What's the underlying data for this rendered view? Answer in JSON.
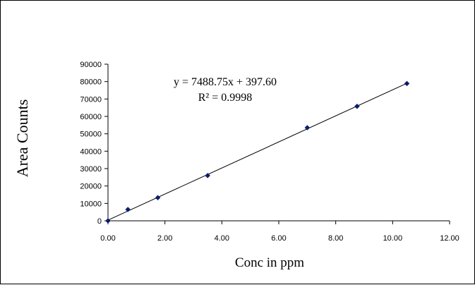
{
  "chart_data": {
    "type": "scatter",
    "xlabel": "Conc in ppm",
    "ylabel": "Area Counts",
    "xlim": [
      0,
      12
    ],
    "ylim": [
      0,
      90000
    ],
    "x_ticks": [
      "0.00",
      "2.00",
      "4.00",
      "6.00",
      "8.00",
      "10.00",
      "12.00"
    ],
    "y_ticks": [
      "0",
      "10000",
      "20000",
      "30000",
      "40000",
      "50000",
      "60000",
      "70000",
      "80000",
      "90000"
    ],
    "series": [
      {
        "marker_color": "#0B1C6E",
        "points": [
          {
            "x": 0.0,
            "y": 0
          },
          {
            "x": 0.7,
            "y": 6500
          },
          {
            "x": 1.75,
            "y": 13300
          },
          {
            "x": 3.5,
            "y": 26000
          },
          {
            "x": 7.0,
            "y": 53500
          },
          {
            "x": 8.75,
            "y": 65800
          },
          {
            "x": 10.5,
            "y": 78900
          }
        ]
      }
    ],
    "trendline": {
      "type": "linear",
      "slope": 7488.75,
      "intercept": 397.6,
      "color": "#000000"
    },
    "annotations": [
      "y = 7488.75x + 397.60",
      "R² = 0.9998"
    ],
    "grid": false,
    "legend": "none"
  }
}
